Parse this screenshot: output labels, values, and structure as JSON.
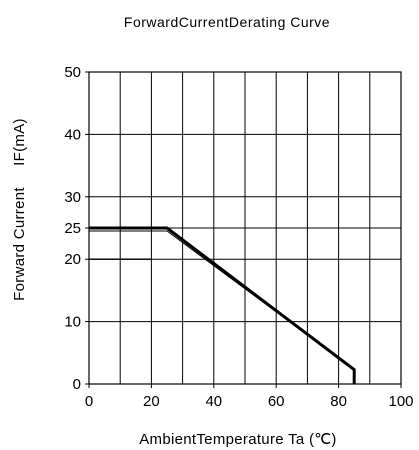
{
  "chart_data": {
    "type": "line",
    "title": "ForwardCurrentDerating Curve",
    "xlabel": "AmbientTemperature Ta (℃)",
    "ylabel": "Forward Current",
    "ylabel_symbol": "IF(mA)",
    "xlim": [
      0,
      100
    ],
    "ylim": [
      0,
      50
    ],
    "grid": true,
    "x_ticks": [
      0,
      20,
      40,
      60,
      80,
      100
    ],
    "y_ticks": [
      0,
      10,
      20,
      25,
      30,
      40,
      50
    ],
    "x_tick_labels": [
      "0",
      "20",
      "40",
      "60",
      "80",
      "100"
    ],
    "y_tick_labels": [
      "0",
      "10",
      "20",
      "25",
      "30",
      "40",
      "50"
    ],
    "series": [
      {
        "x": [
          0,
          25,
          85,
          85
        ],
        "y": [
          25,
          25,
          2.3,
          0
        ],
        "weight": "thick"
      },
      {
        "x": [
          0,
          20
        ],
        "y": [
          20,
          20
        ],
        "weight": "thin"
      }
    ]
  }
}
